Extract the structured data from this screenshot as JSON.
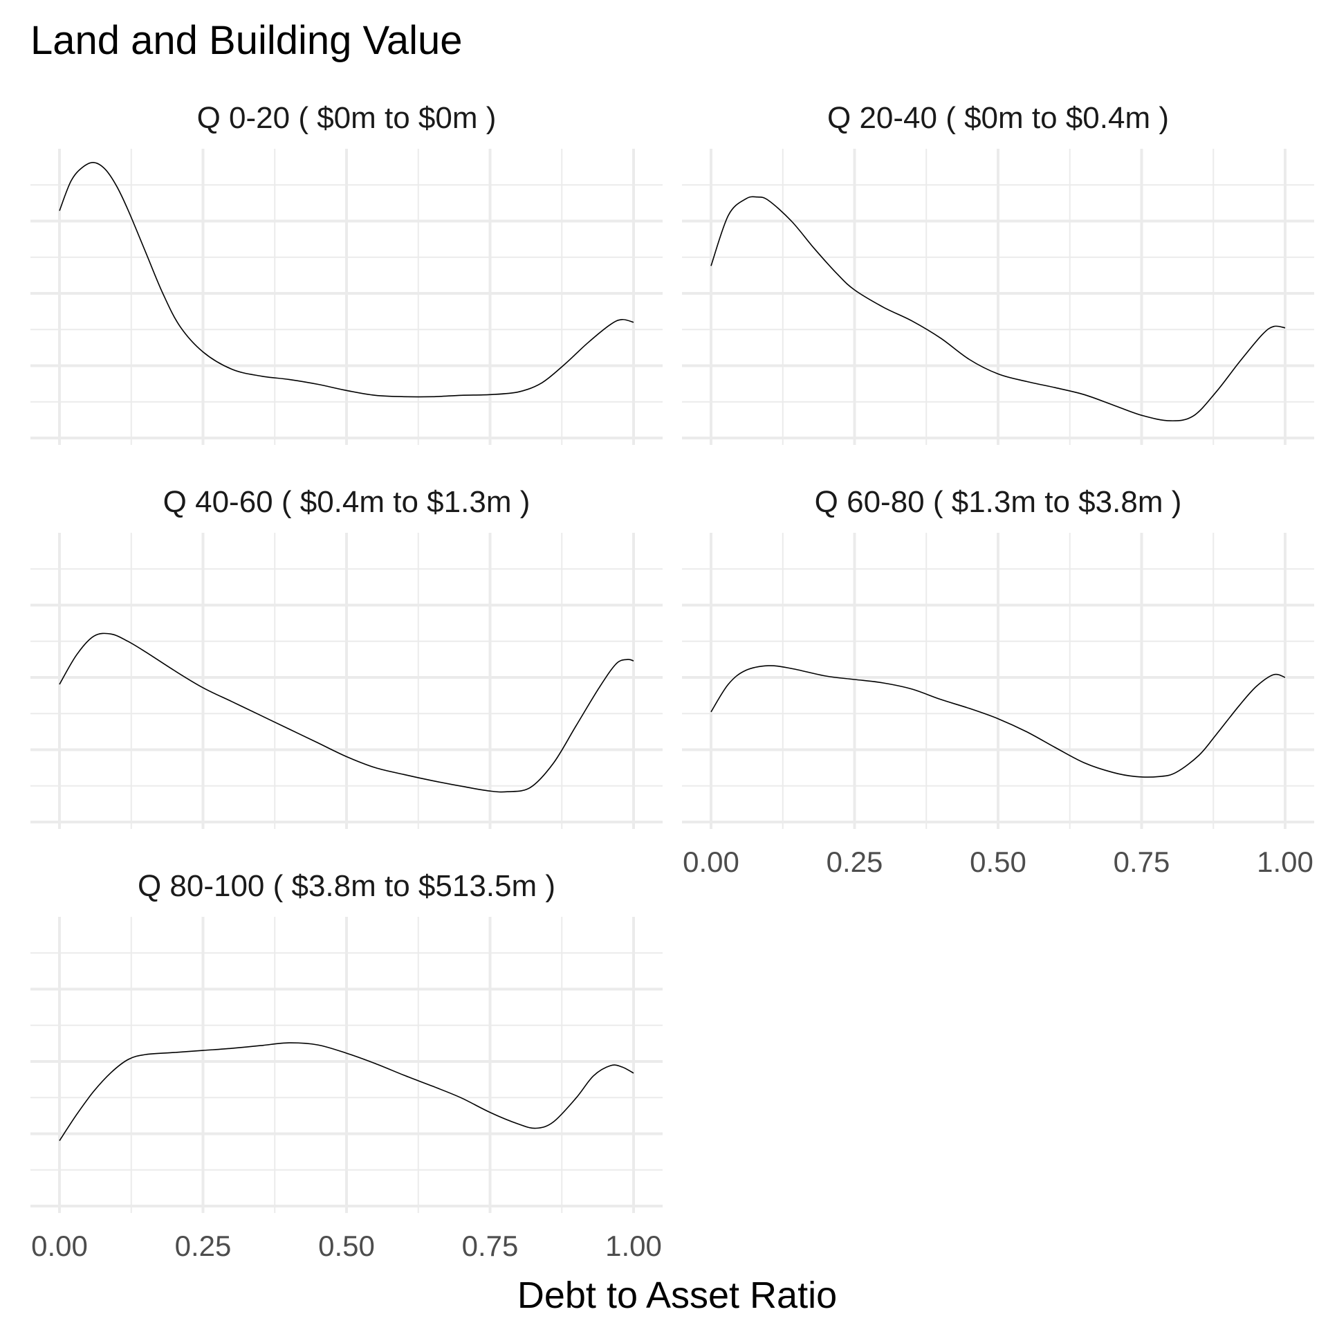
{
  "chart_data": {
    "type": "line",
    "title": "Land and Building Value",
    "xlabel": "Debt to Asset Ratio",
    "ylabel": "",
    "xlim": [
      0,
      1
    ],
    "x_ticks": [
      "0.00",
      "0.25",
      "0.50",
      "0.75",
      "1.00"
    ],
    "grid": true,
    "legend": "none",
    "line_color": "#000000",
    "grid_color": "#ebebeb",
    "facets": [
      {
        "title": "Q 0-20   ( $0m to $0m )",
        "x": [
          0.0,
          0.02,
          0.04,
          0.06,
          0.08,
          0.1,
          0.12,
          0.15,
          0.18,
          0.21,
          0.25,
          0.3,
          0.35,
          0.4,
          0.45,
          0.5,
          0.55,
          0.6,
          0.65,
          0.7,
          0.75,
          0.8,
          0.84,
          0.88,
          0.92,
          0.96,
          0.98,
          1.0
        ],
        "y": [
          3.3,
          3.73,
          3.93,
          4.0,
          3.9,
          3.65,
          3.3,
          2.7,
          2.1,
          1.62,
          1.25,
          1.0,
          0.9,
          0.85,
          0.78,
          0.69,
          0.62,
          0.6,
          0.6,
          0.62,
          0.63,
          0.67,
          0.8,
          1.07,
          1.38,
          1.65,
          1.72,
          1.68
        ]
      },
      {
        "title": "Q 20-40   ( $0m to $0.4m )",
        "x": [
          0.0,
          0.03,
          0.06,
          0.08,
          0.1,
          0.14,
          0.18,
          0.22,
          0.25,
          0.3,
          0.35,
          0.4,
          0.45,
          0.5,
          0.55,
          0.6,
          0.65,
          0.7,
          0.75,
          0.8,
          0.84,
          0.88,
          0.92,
          0.96,
          0.98,
          1.0
        ],
        "y": [
          2.5,
          3.23,
          3.47,
          3.5,
          3.45,
          3.15,
          2.75,
          2.38,
          2.15,
          1.9,
          1.7,
          1.45,
          1.14,
          0.93,
          0.82,
          0.73,
          0.63,
          0.48,
          0.33,
          0.25,
          0.32,
          0.67,
          1.1,
          1.5,
          1.62,
          1.6
        ]
      },
      {
        "title": "Q 40-60   ( $0.4m to $1.3m )",
        "x": [
          0.0,
          0.03,
          0.06,
          0.09,
          0.12,
          0.15,
          0.2,
          0.25,
          0.3,
          0.35,
          0.4,
          0.45,
          0.5,
          0.55,
          0.6,
          0.65,
          0.7,
          0.75,
          0.78,
          0.82,
          0.86,
          0.9,
          0.94,
          0.97,
          0.99,
          1.0
        ],
        "y": [
          2.0,
          2.43,
          2.7,
          2.73,
          2.62,
          2.47,
          2.2,
          1.95,
          1.75,
          1.55,
          1.35,
          1.15,
          0.95,
          0.79,
          0.69,
          0.6,
          0.52,
          0.45,
          0.44,
          0.5,
          0.85,
          1.4,
          1.95,
          2.3,
          2.36,
          2.34
        ]
      },
      {
        "title": "Q 60-80   ( $1.3m to $3.8m )",
        "x": [
          0.0,
          0.03,
          0.06,
          0.1,
          0.14,
          0.2,
          0.25,
          0.3,
          0.35,
          0.4,
          0.45,
          0.5,
          0.55,
          0.6,
          0.65,
          0.7,
          0.74,
          0.78,
          0.81,
          0.85,
          0.88,
          0.92,
          0.95,
          0.98,
          1.0
        ],
        "y": [
          1.6,
          2.0,
          2.2,
          2.27,
          2.23,
          2.12,
          2.07,
          2.02,
          1.93,
          1.78,
          1.65,
          1.5,
          1.31,
          1.08,
          0.86,
          0.72,
          0.66,
          0.66,
          0.72,
          0.97,
          1.27,
          1.69,
          1.97,
          2.14,
          2.1
        ]
      },
      {
        "title": "Q 80-100   ( $3.8m to $513.5m )",
        "x": [
          0.0,
          0.03,
          0.06,
          0.09,
          0.12,
          0.15,
          0.2,
          0.25,
          0.3,
          0.35,
          0.4,
          0.45,
          0.5,
          0.55,
          0.6,
          0.65,
          0.7,
          0.75,
          0.8,
          0.83,
          0.86,
          0.9,
          0.93,
          0.96,
          0.98,
          1.0
        ],
        "y": [
          0.95,
          1.33,
          1.67,
          1.94,
          2.13,
          2.2,
          2.23,
          2.26,
          2.29,
          2.33,
          2.37,
          2.34,
          2.22,
          2.07,
          1.9,
          1.74,
          1.57,
          1.36,
          1.19,
          1.13,
          1.22,
          1.57,
          1.89,
          2.04,
          2.02,
          1.93
        ]
      }
    ]
  }
}
